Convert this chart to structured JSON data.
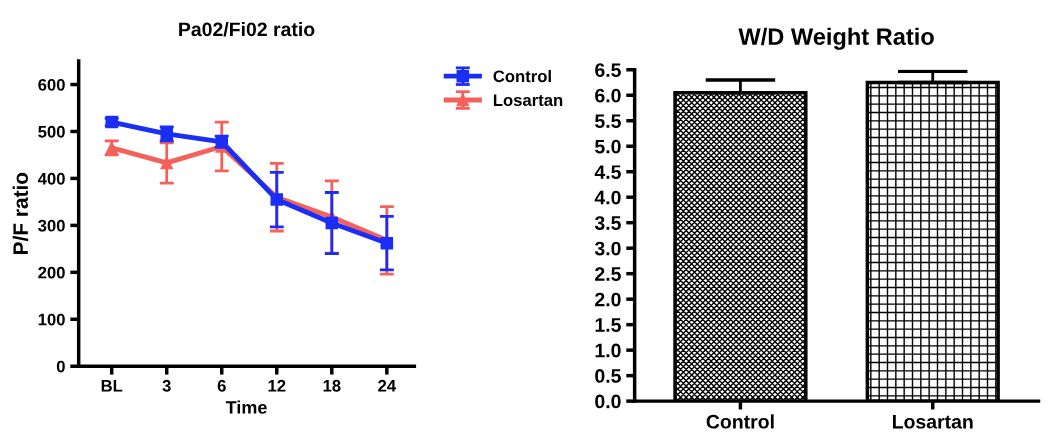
{
  "chart_data": [
    {
      "type": "line",
      "title": "Pa02/Fi02 ratio",
      "xlabel": "Time",
      "ylabel": "P/F ratio",
      "categories": [
        "BL",
        "3",
        "6",
        "12",
        "18",
        "24"
      ],
      "ylim": [
        0,
        650
      ],
      "yticks": [
        0,
        100,
        200,
        300,
        400,
        500,
        600
      ],
      "legend": "top right",
      "grid": false,
      "series": [
        {
          "name": "Control",
          "color": "#1a2ef5",
          "marker": "square",
          "values": [
            520,
            495,
            478,
            355,
            305,
            262
          ],
          "errors": [
            8,
            15,
            12,
            58,
            65,
            57
          ]
        },
        {
          "name": "Losartan",
          "color": "#f5605a",
          "marker": "triangle",
          "values": [
            465,
            433,
            468,
            360,
            318,
            268
          ],
          "errors": [
            15,
            43,
            52,
            72,
            77,
            72
          ]
        }
      ]
    },
    {
      "type": "bar",
      "title": "W/D Weight Ratio",
      "categories": [
        "Control",
        "Losartan"
      ],
      "values": [
        6.05,
        6.25
      ],
      "errors": [
        0.25,
        0.22
      ],
      "colors": [
        "#000000",
        "#000000"
      ],
      "ylim": [
        0,
        6.5
      ],
      "yticks": [
        {
          "value": 0,
          "label": "0.0"
        },
        0.5,
        {
          "value": 1,
          "label": "1.0"
        },
        1.5,
        {
          "value": 2,
          "label": "2.0"
        },
        2.5,
        {
          "value": 3,
          "label": "3.0"
        },
        3.5,
        {
          "value": 4,
          "label": "4.0"
        },
        4.5,
        {
          "value": 5,
          "label": "5.0"
        },
        5.5,
        {
          "value": 6,
          "label": "6.0"
        },
        6.5
      ],
      "grid": false
    }
  ]
}
